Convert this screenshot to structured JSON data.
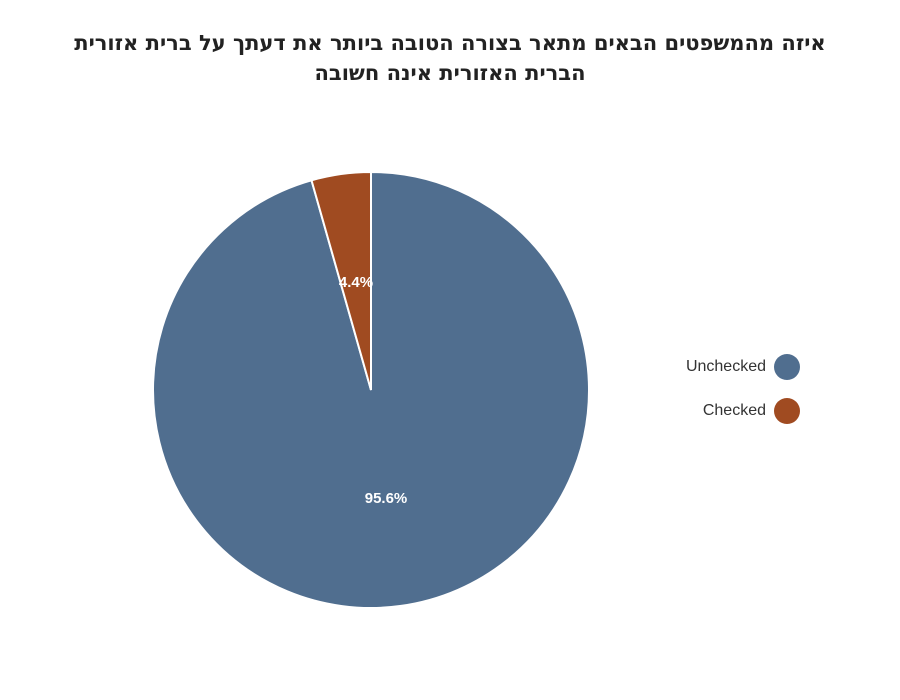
{
  "chart_data": {
    "type": "pie",
    "title_lines": [
      "איזה מהמשפטים הבאים מתאר בצורה הטובה ביותר את דעתך על ברית אזורית",
      "הברית האזורית אינה חשובה"
    ],
    "slices": [
      {
        "label": "Unchecked",
        "value": 95.6,
        "display": "95.6%",
        "color": "#506e8f"
      },
      {
        "label": "Checked",
        "value": 4.4,
        "display": "4.4%",
        "color": "#a04b21"
      }
    ],
    "legend_position": "right"
  }
}
